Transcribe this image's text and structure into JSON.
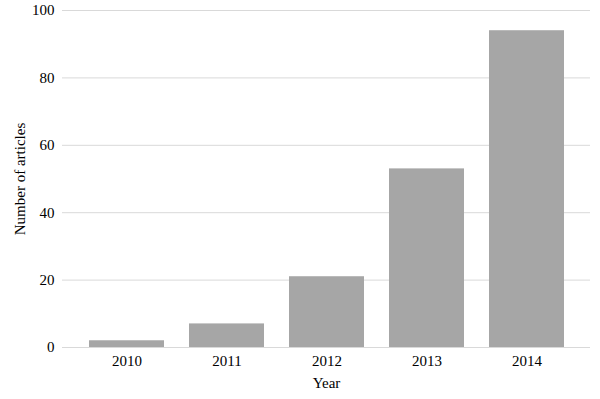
{
  "chart_data": {
    "type": "bar",
    "x_label": "Year",
    "y_label": "Number of articles",
    "categories": [
      "2010",
      "2011",
      "2012",
      "2013",
      "2014"
    ],
    "values": [
      2,
      7,
      21,
      53,
      94
    ],
    "color": "#a6a6a6",
    "ylim": [
      0,
      100
    ],
    "yticks": [
      0,
      20,
      40,
      60,
      80,
      100
    ],
    "grid": true
  }
}
